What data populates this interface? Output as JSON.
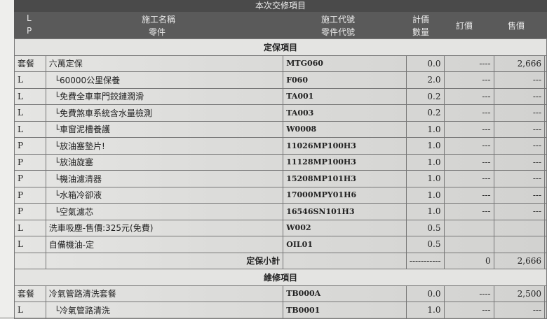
{
  "title": "本次交修項目",
  "header": {
    "type_top": "L",
    "type_bottom": "P",
    "name_top": "施工名稱",
    "name_bottom": "零件",
    "code_top": "施工代號",
    "code_bottom": "零件代號",
    "qty_top": "計價",
    "qty_bottom": "數量",
    "list_price": "訂價",
    "sale_price": "售價"
  },
  "sections": [
    {
      "title": "定保項目",
      "rows": [
        {
          "type": "套餐",
          "name": "六萬定保",
          "code": "MTG060",
          "qty": "0.0",
          "list": "----",
          "sale": "2,666"
        },
        {
          "type": "L",
          "name": "└60000公里保養",
          "code": "F060",
          "qty": "2.0",
          "list": "---",
          "sale": "---"
        },
        {
          "type": "L",
          "name": "└免費全車車門鉸鏈潤滑",
          "code": "TA001",
          "qty": "0.2",
          "list": "---",
          "sale": "---"
        },
        {
          "type": "L",
          "name": "└免費煞車系統含水量檢測",
          "code": "TA003",
          "qty": "0.2",
          "list": "---",
          "sale": "---"
        },
        {
          "type": "L",
          "name": "└車窗泥槽養護",
          "code": "W0008",
          "qty": "1.0",
          "list": "---",
          "sale": "---"
        },
        {
          "type": "P",
          "name": "└放油塞墊片!",
          "code": "11026MP100H3",
          "qty": "1.0",
          "list": "---",
          "sale": "---"
        },
        {
          "type": "P",
          "name": "└放油旋塞",
          "code": "11128MP100H3",
          "qty": "1.0",
          "list": "---",
          "sale": "---"
        },
        {
          "type": "P",
          "name": "└機油濾清器",
          "code": "15208MP101H3",
          "qty": "1.0",
          "list": "---",
          "sale": "---"
        },
        {
          "type": "P",
          "name": "└水箱冷卻液",
          "code": "17000MPY01H6",
          "qty": "1.0",
          "list": "---",
          "sale": "---"
        },
        {
          "type": "P",
          "name": "└空氣濾芯",
          "code": "16546SN101H3",
          "qty": "1.0",
          "list": "---",
          "sale": "---"
        },
        {
          "type": "L",
          "name": "洗車吸塵-售價:325元(免費)",
          "code": "W002",
          "qty": "0.5",
          "list": "",
          "sale": ""
        },
        {
          "type": "L",
          "name": "自備機油-定",
          "code": "OIL01",
          "qty": "0.5",
          "list": "",
          "sale": ""
        }
      ],
      "subtotal": {
        "label": "定保小計",
        "qty": "-----------",
        "list": "0",
        "sale": "2,666"
      }
    },
    {
      "title": "維修項目",
      "rows": [
        {
          "type": "套餐",
          "name": "冷氣管路清洗套餐",
          "code": "TB000A",
          "qty": "0.0",
          "list": "----",
          "sale": "2,500"
        },
        {
          "type": "L",
          "name": "└冷氣管路清洗",
          "code": "TB0001",
          "qty": "1.0",
          "list": "---",
          "sale": "---"
        }
      ]
    }
  ]
}
